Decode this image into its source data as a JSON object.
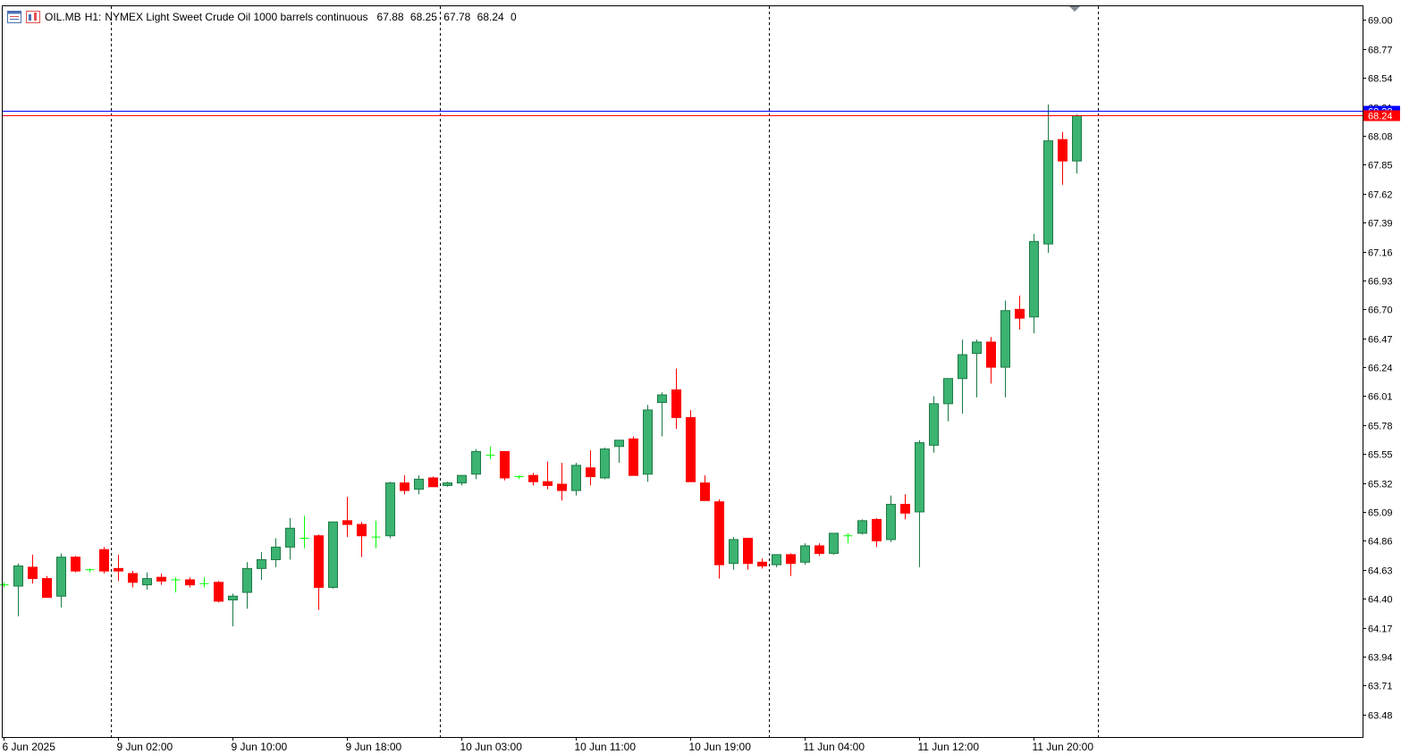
{
  "header": {
    "symbol": "OIL.MB",
    "timeframe": "H1:",
    "description": "NYMEX Light Sweet Crude Oil 1000 barrels continuous",
    "open": "67.88",
    "high": "68.25",
    "low": "67.78",
    "close": "68.24",
    "volume": "0"
  },
  "colors": {
    "up": "#3cb371",
    "down": "#ff0000",
    "doji": "#00ff00",
    "bid_line": "#ff0000",
    "ask_line": "#0000ff",
    "grid": "#000000",
    "background": "#ffffff"
  },
  "price_labels": {
    "bid": "68.24",
    "ask": "68.28"
  },
  "chart_data": {
    "type": "candlestick",
    "ylim": [
      63.3,
      69.11
    ],
    "y_ticks": [
      "69.00",
      "68.77",
      "68.54",
      "68.31",
      "68.08",
      "67.85",
      "67.62",
      "67.39",
      "67.16",
      "66.93",
      "66.70",
      "66.47",
      "66.24",
      "66.01",
      "65.78",
      "65.55",
      "65.32",
      "65.09",
      "64.86",
      "64.63",
      "64.40",
      "64.17",
      "63.94",
      "63.71",
      "63.48"
    ],
    "x_ticks": [
      "6 Jun 2025",
      "9 Jun 02:00",
      "9 Jun 10:00",
      "9 Jun 18:00",
      "10 Jun 03:00",
      "10 Jun 11:00",
      "10 Jun 19:00",
      "11 Jun 04:00",
      "11 Jun 12:00",
      "11 Jun 20:00"
    ],
    "x_tick_bar_index": [
      0,
      8,
      16,
      24,
      32,
      40,
      48,
      56,
      64,
      72
    ],
    "day_separator_bar_index": [
      7,
      30,
      53,
      76
    ],
    "bid_price": 68.24,
    "ask_price": 68.28,
    "ohlc": [
      [
        64.51,
        64.53,
        64.49,
        64.51
      ],
      [
        64.5,
        64.68,
        64.26,
        64.66
      ],
      [
        64.65,
        64.75,
        64.52,
        64.56
      ],
      [
        64.56,
        64.58,
        64.41,
        64.41
      ],
      [
        64.42,
        64.76,
        64.33,
        64.73
      ],
      [
        64.73,
        64.74,
        64.61,
        64.62
      ],
      [
        64.62,
        64.64,
        64.61,
        64.63
      ],
      [
        64.79,
        64.81,
        64.6,
        64.62
      ],
      [
        64.64,
        64.75,
        64.54,
        64.62
      ],
      [
        64.6,
        64.62,
        64.49,
        64.53
      ],
      [
        64.51,
        64.61,
        64.47,
        64.56
      ],
      [
        64.57,
        64.6,
        64.51,
        64.54
      ],
      [
        64.56,
        64.57,
        64.45,
        64.55
      ],
      [
        64.55,
        64.57,
        64.49,
        64.51
      ],
      [
        64.51,
        64.57,
        64.49,
        64.52
      ],
      [
        64.53,
        64.54,
        64.37,
        64.38
      ],
      [
        64.39,
        64.44,
        64.18,
        64.42
      ],
      [
        64.45,
        64.69,
        64.32,
        64.64
      ],
      [
        64.64,
        64.77,
        64.55,
        64.71
      ],
      [
        64.71,
        64.88,
        64.65,
        64.81
      ],
      [
        64.81,
        65.04,
        64.71,
        64.96
      ],
      [
        64.88,
        65.06,
        64.8,
        64.88
      ],
      [
        64.9,
        64.91,
        64.31,
        64.49
      ],
      [
        64.49,
        65.01,
        64.48,
        65.01
      ],
      [
        65.02,
        65.21,
        64.89,
        64.99
      ],
      [
        64.99,
        65.01,
        64.73,
        64.9
      ],
      [
        64.89,
        65.02,
        64.8,
        64.89
      ],
      [
        64.9,
        65.33,
        64.88,
        65.32
      ],
      [
        65.32,
        65.38,
        65.23,
        65.26
      ],
      [
        65.27,
        65.38,
        65.23,
        65.35
      ],
      [
        65.36,
        65.37,
        65.29,
        65.29
      ],
      [
        65.3,
        65.33,
        65.29,
        65.32
      ],
      [
        65.32,
        65.36,
        65.3,
        65.38
      ],
      [
        65.39,
        65.59,
        65.35,
        65.57
      ],
      [
        65.55,
        65.61,
        65.51,
        65.54
      ],
      [
        65.57,
        65.56,
        65.34,
        65.36
      ],
      [
        65.37,
        65.38,
        65.35,
        65.37
      ],
      [
        65.38,
        65.4,
        65.3,
        65.33
      ],
      [
        65.33,
        65.49,
        65.27,
        65.3
      ],
      [
        65.31,
        65.48,
        65.18,
        65.26
      ],
      [
        65.26,
        65.48,
        65.22,
        65.46
      ],
      [
        65.44,
        65.58,
        65.3,
        65.37
      ],
      [
        65.36,
        65.6,
        65.35,
        65.59
      ],
      [
        65.61,
        65.65,
        65.48,
        65.66
      ],
      [
        65.67,
        65.69,
        65.38,
        65.38
      ],
      [
        65.39,
        65.94,
        65.33,
        65.9
      ],
      [
        65.96,
        66.04,
        65.69,
        66.02
      ],
      [
        66.06,
        66.23,
        65.75,
        65.84
      ],
      [
        65.84,
        65.9,
        65.33,
        65.33
      ],
      [
        65.32,
        65.38,
        65.18,
        65.18
      ],
      [
        65.17,
        65.19,
        64.56,
        64.67
      ],
      [
        64.68,
        64.89,
        64.63,
        64.87
      ],
      [
        64.88,
        64.88,
        64.63,
        64.68
      ],
      [
        64.69,
        64.72,
        64.64,
        64.66
      ],
      [
        64.67,
        64.74,
        64.65,
        64.75
      ],
      [
        64.75,
        64.76,
        64.58,
        64.68
      ],
      [
        64.69,
        64.84,
        64.67,
        64.82
      ],
      [
        64.82,
        64.84,
        64.74,
        64.76
      ],
      [
        64.76,
        64.92,
        64.75,
        64.92
      ],
      [
        64.9,
        64.92,
        64.84,
        64.9
      ],
      [
        64.92,
        65.03,
        64.91,
        65.02
      ],
      [
        65.03,
        65.04,
        64.81,
        64.86
      ],
      [
        64.87,
        65.22,
        64.85,
        65.15
      ],
      [
        65.15,
        65.23,
        65.03,
        65.08
      ],
      [
        65.09,
        65.66,
        64.65,
        65.64
      ],
      [
        65.62,
        66.01,
        65.56,
        65.95
      ],
      [
        65.95,
        66.15,
        65.81,
        66.15
      ],
      [
        66.15,
        66.46,
        65.87,
        66.34
      ],
      [
        66.35,
        66.46,
        66.0,
        66.44
      ],
      [
        66.44,
        66.48,
        66.11,
        66.24
      ],
      [
        66.24,
        66.77,
        66.0,
        66.69
      ],
      [
        66.7,
        66.81,
        66.54,
        66.63
      ],
      [
        66.64,
        67.3,
        66.51,
        67.24
      ],
      [
        67.22,
        68.33,
        67.15,
        68.04
      ],
      [
        68.05,
        68.11,
        67.69,
        67.88
      ],
      [
        67.88,
        68.25,
        67.78,
        68.24
      ]
    ]
  }
}
